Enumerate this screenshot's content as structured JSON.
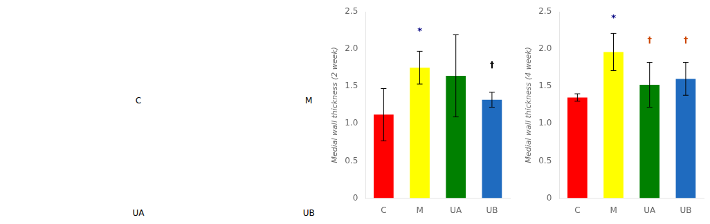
{
  "chart_data": [
    {
      "type": "bar",
      "categories": [
        "C",
        "M",
        "UA",
        "UB"
      ],
      "values": [
        1.12,
        1.75,
        1.64,
        1.32
      ],
      "errors": [
        0.35,
        0.22,
        0.55,
        0.1
      ],
      "colors": [
        "#ff0000",
        "#ffff00",
        "#008000",
        "#1f6bbf"
      ],
      "annotations": [
        {
          "text": "*",
          "category": "M",
          "y": 2.18,
          "color": "#000080"
        },
        {
          "text": "†",
          "category": "UB",
          "y": 1.72,
          "color": "#000000"
        }
      ],
      "ylabel": "Medial wall thickness (2 week)",
      "ylim": [
        0,
        2.5
      ],
      "yticks": [
        0,
        0.5,
        {
          "value": 1.0,
          "label": "1.0"
        },
        1.5,
        {
          "value": 2.0,
          "label": "2.0"
        },
        2.5
      ],
      "grid": false
    },
    {
      "type": "bar",
      "categories": [
        "C",
        "M",
        "UA",
        "UB"
      ],
      "values": [
        1.35,
        1.96,
        1.52,
        1.6
      ],
      "errors": [
        0.05,
        0.25,
        0.3,
        0.22
      ],
      "colors": [
        "#ff0000",
        "#ffff00",
        "#008000",
        "#1f6bbf"
      ],
      "annotations": [
        {
          "text": "*",
          "category": "M",
          "y": 2.35,
          "color": "#000080"
        },
        {
          "text": "†",
          "category": "UA",
          "y": 2.06,
          "color": "#cc4400"
        },
        {
          "text": "†",
          "category": "UB",
          "y": 2.06,
          "color": "#cc4400"
        }
      ],
      "ylabel": "Medial wall thickness (4 week)",
      "ylim": [
        0,
        2.5
      ],
      "yticks": [
        0,
        0.5,
        {
          "value": 1.0,
          "label": "1.0"
        },
        1.5,
        {
          "value": 2.0,
          "label": "2.0"
        },
        2.5
      ],
      "grid": false
    }
  ],
  "image_labels": [
    "C",
    "M",
    "UA",
    "UB"
  ]
}
